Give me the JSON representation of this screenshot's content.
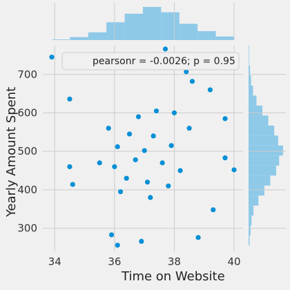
{
  "chart_data": {
    "type": "scatter",
    "title": "",
    "xlabel": "Time on Website",
    "ylabel": "Yearly Amount Spent",
    "xlim": [
      33.6,
      40.3
    ],
    "ylim": [
      240,
      775
    ],
    "xticks": [
      34,
      36,
      38,
      40
    ],
    "yticks": [
      300,
      400,
      500,
      600,
      700
    ],
    "grid": true,
    "annotation": "pearsonr = -0.0026; p = 0.95",
    "legend_position": "top-right",
    "colors": {
      "points": "#008fd5",
      "hist": "#8ec9e8",
      "background": "#f0f0f0",
      "grid": "#cbcbcb"
    },
    "marginal_x_hist": {
      "bin_edges": [
        33.9,
        34.51,
        35.12,
        35.73,
        36.34,
        36.95,
        37.56,
        38.17,
        38.78,
        39.39,
        40.0
      ],
      "counts": [
        2,
        10,
        26,
        60,
        89,
        112,
        94,
        55,
        30,
        12
      ]
    },
    "marginal_y_hist": {
      "bin_edges": [
        255,
        281,
        307,
        333,
        359,
        385,
        411,
        437,
        463,
        489,
        515,
        541,
        567,
        593,
        619,
        645,
        671,
        697,
        723,
        749,
        775
      ],
      "counts": [
        2,
        4,
        6,
        10,
        20,
        32,
        44,
        56,
        62,
        70,
        60,
        52,
        40,
        28,
        16,
        9,
        5,
        3,
        1,
        1
      ]
    },
    "points": [
      {
        "x": 33.9,
        "y": 745
      },
      {
        "x": 37.7,
        "y": 766
      },
      {
        "x": 40.0,
        "y": 452
      },
      {
        "x": 34.5,
        "y": 636
      },
      {
        "x": 34.5,
        "y": 460
      },
      {
        "x": 34.6,
        "y": 414
      },
      {
        "x": 35.9,
        "y": 283
      },
      {
        "x": 36.1,
        "y": 256
      },
      {
        "x": 36.9,
        "y": 266
      },
      {
        "x": 38.8,
        "y": 276
      },
      {
        "x": 39.7,
        "y": 483
      },
      {
        "x": 39.7,
        "y": 585
      },
      {
        "x": 39.3,
        "y": 348
      },
      {
        "x": 38.4,
        "y": 707
      },
      {
        "x": 39.2,
        "y": 660
      },
      {
        "x": 38.6,
        "y": 682
      },
      {
        "x": 35.8,
        "y": 560
      },
      {
        "x": 36.1,
        "y": 512
      },
      {
        "x": 36.4,
        "y": 430
      },
      {
        "x": 36.7,
        "y": 478
      },
      {
        "x": 37.0,
        "y": 502
      },
      {
        "x": 37.3,
        "y": 540
      },
      {
        "x": 37.6,
        "y": 470
      },
      {
        "x": 37.9,
        "y": 515
      },
      {
        "x": 38.2,
        "y": 450
      },
      {
        "x": 36.8,
        "y": 590
      },
      {
        "x": 37.1,
        "y": 420
      },
      {
        "x": 36.5,
        "y": 545
      },
      {
        "x": 37.4,
        "y": 605
      },
      {
        "x": 36.2,
        "y": 395
      },
      {
        "x": 37.8,
        "y": 410
      },
      {
        "x": 38.5,
        "y": 560
      },
      {
        "x": 35.5,
        "y": 470
      },
      {
        "x": 36.0,
        "y": 460
      },
      {
        "x": 38.0,
        "y": 600
      },
      {
        "x": 37.2,
        "y": 380
      }
    ]
  }
}
